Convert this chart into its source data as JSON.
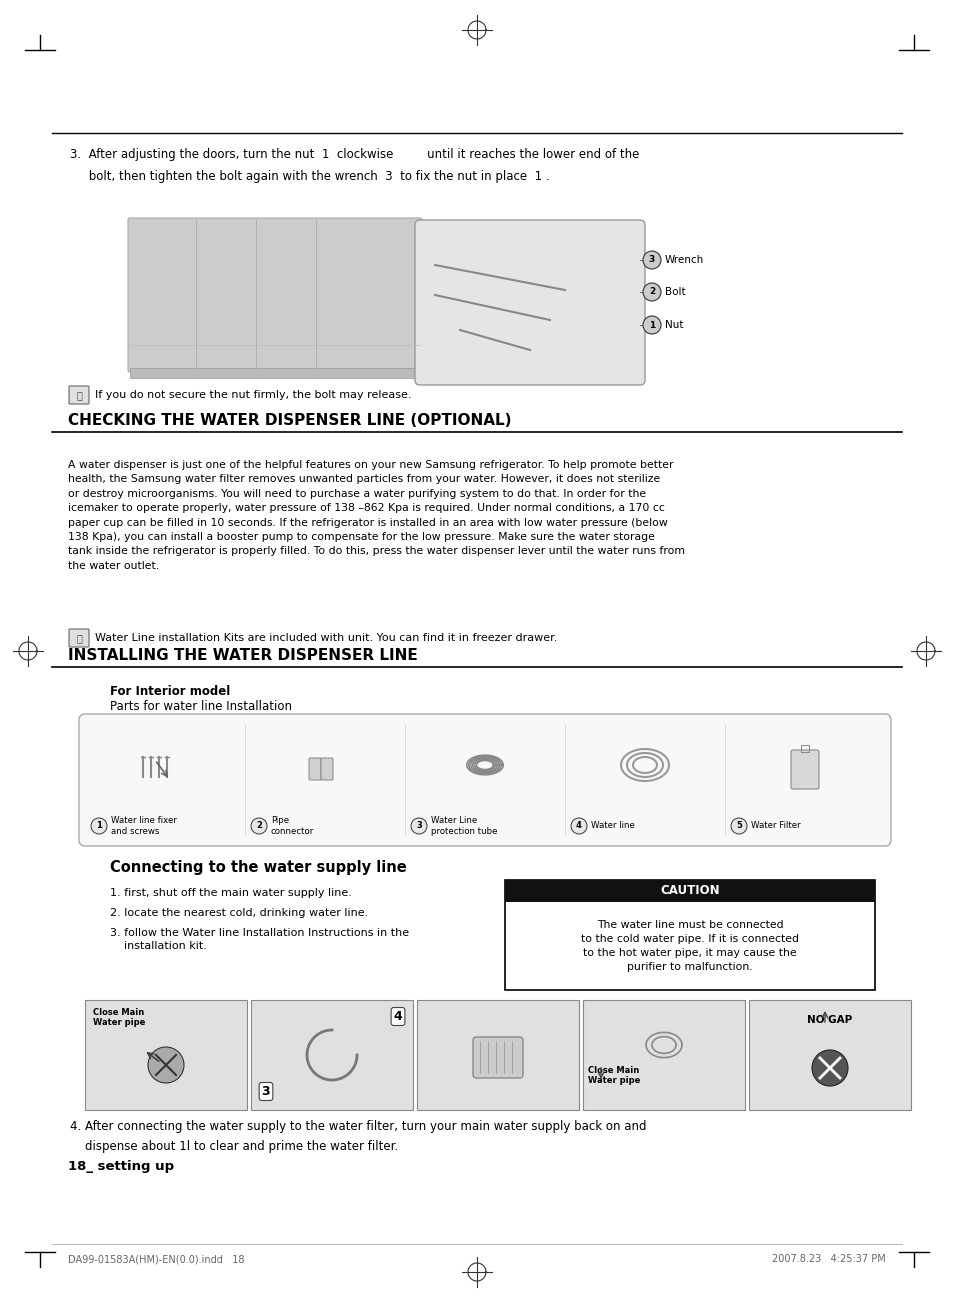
{
  "page_bg": "#ffffff",
  "text_color": "#000000",
  "section1_title": "CHECKING THE WATER DISPENSER LINE (OPTIONAL)",
  "section2_title": "INSTALLING THE WATER DISPENSER LINE",
  "step3_text_line1": "3.  After adjusting the doors, turn the nut  1  clockwise         until it reaches the lower end of the",
  "step3_text_line2": "     bolt, then tighten the bolt again with the wrench  3  to fix the nut in place  1 .",
  "note1_text": "If you do not secure the nut firmly, the bolt may release.",
  "checking_body": "A water dispenser is just one of the helpful features on your new Samsung refrigerator. To help promote better\nhealth, the Samsung water filter removes unwanted particles from your water. However, it does not sterilize\nor destroy microorganisms. You will need to purchase a water purifying system to do that. In order for the\nicemaker to operate properly, water pressure of 138 –862 Kpa is required. Under normal conditions, a 170 cc\npaper cup can be filled in 10 seconds. If the refrigerator is installed in an area with low water pressure (below\n138 Kpa), you can install a booster pump to compensate for the low pressure. Make sure the water storage\ntank inside the refrigerator is properly filled. To do this, press the water dispenser lever until the water runs from\nthe water outlet.",
  "note2_text": "Water Line installation Kits are included with unit. You can find it in freezer drawer.",
  "interior_model_label": "For Interior model",
  "parts_label": "Parts for water line Installation",
  "part_labels": [
    "Water line fixer\nand screws",
    "Pipe\nconnector",
    "Water Line\nprotection tube",
    "Water line",
    "Water Filter"
  ],
  "part_numbers": [
    "1",
    "2",
    "3",
    "4",
    "5"
  ],
  "connecting_title": "Connecting to the water supply line",
  "connecting_steps": [
    "1. first, shut off the main water supply line.",
    "2. locate the nearest cold, drinking water line.",
    "3. follow the Water line Installation Instructions in the\n    installation kit."
  ],
  "caution_title": "CAUTION",
  "caution_text": "The water line must be connected\nto the cold water pipe. If it is connected\nto the hot water pipe, it may cause the\npurifier to malfunction.",
  "step4_text_line1": "4. After connecting the water supply to the water filter, turn your main water supply back on and",
  "step4_text_line2": "    dispense about 1l to clear and prime the water filter.",
  "page_number": "18_ setting up",
  "footer_left": "DA99-01583A(HM)-EN(0.0).indd   18",
  "footer_right": "2007.8.23   4:25:37 PM"
}
